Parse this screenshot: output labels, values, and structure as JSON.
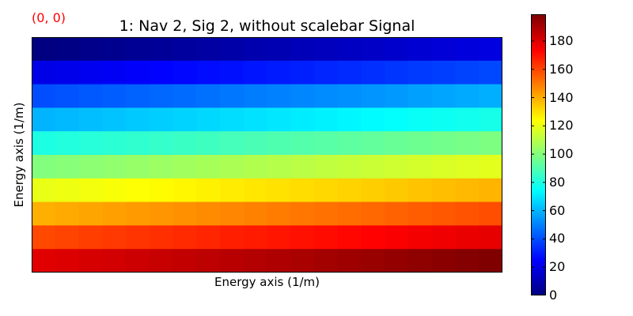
{
  "coordinate_readout": "(0, 0)",
  "chart_data": {
    "type": "heatmap",
    "title": "1: Nav 2, Sig 2, without scalebar Signal",
    "xlabel": "Energy axis (1/m)",
    "ylabel": "Energy axis (1/m)",
    "rows": 10,
    "cols": 20,
    "values": [
      [
        0,
        1,
        2,
        3,
        4,
        5,
        6,
        7,
        8,
        9,
        10,
        11,
        12,
        13,
        14,
        15,
        16,
        17,
        18,
        19
      ],
      [
        20,
        21,
        22,
        23,
        24,
        25,
        26,
        27,
        28,
        29,
        30,
        31,
        32,
        33,
        34,
        35,
        36,
        37,
        38,
        39
      ],
      [
        40,
        41,
        42,
        43,
        44,
        45,
        46,
        47,
        48,
        49,
        50,
        51,
        52,
        53,
        54,
        55,
        56,
        57,
        58,
        59
      ],
      [
        60,
        61,
        62,
        63,
        64,
        65,
        66,
        67,
        68,
        69,
        70,
        71,
        72,
        73,
        74,
        75,
        76,
        77,
        78,
        79
      ],
      [
        80,
        81,
        82,
        83,
        84,
        85,
        86,
        87,
        88,
        89,
        90,
        91,
        92,
        93,
        94,
        95,
        96,
        97,
        98,
        99
      ],
      [
        100,
        101,
        102,
        103,
        104,
        105,
        106,
        107,
        108,
        109,
        110,
        111,
        112,
        113,
        114,
        115,
        116,
        117,
        118,
        119
      ],
      [
        120,
        121,
        122,
        123,
        124,
        125,
        126,
        127,
        128,
        129,
        130,
        131,
        132,
        133,
        134,
        135,
        136,
        137,
        138,
        139
      ],
      [
        140,
        141,
        142,
        143,
        144,
        145,
        146,
        147,
        148,
        149,
        150,
        151,
        152,
        153,
        154,
        155,
        156,
        157,
        158,
        159
      ],
      [
        160,
        161,
        162,
        163,
        164,
        165,
        166,
        167,
        168,
        169,
        170,
        171,
        172,
        173,
        174,
        175,
        176,
        177,
        178,
        179
      ],
      [
        180,
        181,
        182,
        183,
        184,
        185,
        186,
        187,
        188,
        189,
        190,
        191,
        192,
        193,
        194,
        195,
        196,
        197,
        198,
        199
      ]
    ],
    "colormap": "jet",
    "clim": [
      0,
      199
    ],
    "colorbar_ticks": [
      0,
      20,
      40,
      60,
      80,
      100,
      120,
      140,
      160,
      180
    ],
    "colorbar_ticks_labels": [
      "0",
      "20",
      "40",
      "60",
      "80",
      "100",
      "120",
      "140",
      "160",
      "180"
    ],
    "grid": false
  },
  "colors": {
    "coordinate_text": "#ff0000",
    "axes_frame": "#000000"
  }
}
